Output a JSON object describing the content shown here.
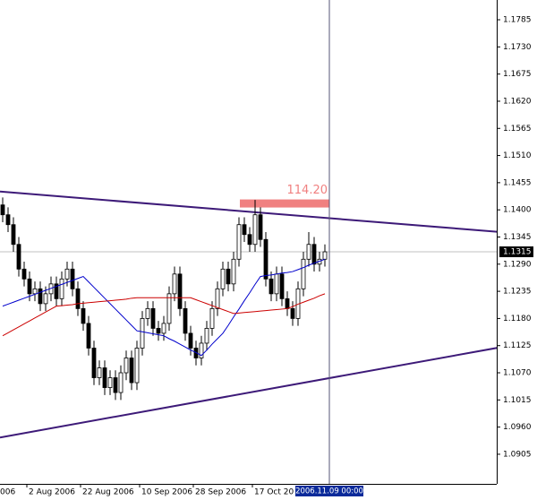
{
  "chart_data": {
    "type": "candlestick",
    "ylim": [
      1.0845,
      1.1825
    ],
    "yticks": [
      1.1785,
      {
        "value": 1.173,
        "label": "1.1730"
      },
      1.1675,
      {
        "value": 1.162,
        "label": "1.1620"
      },
      1.1565,
      {
        "value": 1.151,
        "label": "1.1510"
      },
      1.1455,
      {
        "value": 1.14,
        "label": "1.1400"
      },
      1.1345,
      {
        "value": 1.129,
        "label": "1.1290"
      },
      1.1235,
      {
        "value": 1.118,
        "label": "1.1180"
      },
      1.1125,
      {
        "value": 1.107,
        "label": "1.1070"
      },
      1.1015,
      {
        "value": 1.096,
        "label": "1.0960"
      },
      1.0905
    ],
    "xticks": [
      {
        "value": -4,
        "label": "006"
      },
      {
        "value": 5,
        "label": "2 Aug 2006"
      },
      {
        "value": 15,
        "label": "22 Aug 2006"
      },
      {
        "value": 26,
        "label": "10 Sep 2006"
      },
      {
        "value": 36,
        "label": "28 Sep 2006"
      },
      {
        "value": 47,
        "label": "17 Oct 20"
      }
    ],
    "cursor_label": "2006.11.09 00:00",
    "last_price": 1.1315,
    "annotation": {
      "text": "114.20",
      "price": 1.1412,
      "color": "#f08080"
    },
    "candle_colors": {
      "up": "#ffffff",
      "down": "#000000",
      "outline": "#000000"
    },
    "ohlc": [
      [
        1.141,
        1.1425,
        1.1375,
        1.139
      ],
      [
        1.139,
        1.1405,
        1.1355,
        1.137
      ],
      [
        1.137,
        1.1385,
        1.1315,
        1.133
      ],
      [
        1.133,
        1.1345,
        1.1265,
        1.128
      ],
      [
        1.128,
        1.1295,
        1.1245,
        1.126
      ],
      [
        1.126,
        1.1275,
        1.1215,
        1.123
      ],
      [
        1.123,
        1.1255,
        1.1215,
        1.124
      ],
      [
        1.124,
        1.1255,
        1.1195,
        1.121
      ],
      [
        1.121,
        1.1245,
        1.1195,
        1.123
      ],
      [
        1.123,
        1.1265,
        1.1215,
        1.125
      ],
      [
        1.125,
        1.1265,
        1.1205,
        1.122
      ],
      [
        1.122,
        1.1275,
        1.1205,
        1.126
      ],
      [
        1.126,
        1.1295,
        1.1245,
        1.128
      ],
      [
        1.128,
        1.1295,
        1.1225,
        1.124
      ],
      [
        1.124,
        1.1255,
        1.1185,
        1.12
      ],
      [
        1.12,
        1.1215,
        1.1155,
        1.117
      ],
      [
        1.117,
        1.1185,
        1.1105,
        1.112
      ],
      [
        1.112,
        1.1135,
        1.1045,
        1.106
      ],
      [
        1.106,
        1.1095,
        1.1045,
        1.108
      ],
      [
        1.108,
        1.1095,
        1.1025,
        1.104
      ],
      [
        1.104,
        1.1075,
        1.1025,
        1.106
      ],
      [
        1.106,
        1.1075,
        1.1015,
        1.103
      ],
      [
        1.103,
        1.1085,
        1.1015,
        1.107
      ],
      [
        1.107,
        1.1115,
        1.1055,
        1.11
      ],
      [
        1.11,
        1.1115,
        1.1035,
        1.105
      ],
      [
        1.105,
        1.1135,
        1.1035,
        1.112
      ],
      [
        1.112,
        1.1195,
        1.1105,
        1.118
      ],
      [
        1.118,
        1.1215,
        1.1165,
        1.12
      ],
      [
        1.12,
        1.1215,
        1.1145,
        1.116
      ],
      [
        1.116,
        1.1175,
        1.1135,
        1.115
      ],
      [
        1.115,
        1.1185,
        1.1135,
        1.117
      ],
      [
        1.117,
        1.1245,
        1.1155,
        1.123
      ],
      [
        1.123,
        1.1285,
        1.1215,
        1.127
      ],
      [
        1.127,
        1.1285,
        1.1185,
        1.12
      ],
      [
        1.12,
        1.1215,
        1.1135,
        1.115
      ],
      [
        1.115,
        1.1165,
        1.1105,
        1.112
      ],
      [
        1.112,
        1.1135,
        1.1085,
        1.11
      ],
      [
        1.11,
        1.1145,
        1.1085,
        1.113
      ],
      [
        1.113,
        1.1175,
        1.1115,
        1.116
      ],
      [
        1.116,
        1.1215,
        1.1145,
        1.12
      ],
      [
        1.12,
        1.1255,
        1.1185,
        1.124
      ],
      [
        1.124,
        1.1295,
        1.1225,
        1.128
      ],
      [
        1.128,
        1.1295,
        1.1235,
        1.125
      ],
      [
        1.125,
        1.1315,
        1.1235,
        1.13
      ],
      [
        1.13,
        1.1385,
        1.1285,
        1.137
      ],
      [
        1.137,
        1.1385,
        1.1335,
        1.135
      ],
      [
        1.135,
        1.1365,
        1.1315,
        1.133
      ],
      [
        1.133,
        1.142,
        1.1315,
        1.139
      ],
      [
        1.139,
        1.1405,
        1.1325,
        1.134
      ],
      [
        1.134,
        1.1355,
        1.1245,
        1.126
      ],
      [
        1.126,
        1.1275,
        1.1215,
        1.123
      ],
      [
        1.123,
        1.1285,
        1.1215,
        1.127
      ],
      [
        1.127,
        1.1285,
        1.1205,
        1.122
      ],
      [
        1.122,
        1.1235,
        1.1185,
        1.12
      ],
      [
        1.12,
        1.1215,
        1.1165,
        1.118
      ],
      [
        1.118,
        1.1255,
        1.1165,
        1.124
      ],
      [
        1.124,
        1.1315,
        1.1225,
        1.13
      ],
      [
        1.13,
        1.1355,
        1.1285,
        1.133
      ],
      [
        1.133,
        1.1345,
        1.1275,
        1.129
      ],
      [
        1.129,
        1.1315,
        1.1275,
        1.13
      ],
      [
        1.13,
        1.133,
        1.1285,
        1.1315
      ]
    ],
    "series": [
      {
        "color": "#0000cc",
        "values": [
          1.1205,
          1.1209,
          1.1213,
          1.1217,
          1.1221,
          1.1225,
          1.1229,
          1.1233,
          1.1237,
          1.1241,
          1.1245,
          1.1249,
          1.1253,
          1.1257,
          1.1261,
          1.1265,
          1.1254,
          1.1243,
          1.1232,
          1.1221,
          1.121,
          1.1199,
          1.1188,
          1.1177,
          1.1166,
          1.1155,
          1.1153,
          1.1151,
          1.1149,
          1.1147,
          1.1145,
          1.1139,
          1.1134,
          1.1128,
          1.1122,
          1.1116,
          1.1111,
          1.1105,
          1.1116,
          1.1128,
          1.1139,
          1.115,
          1.1166,
          1.1183,
          1.1199,
          1.1216,
          1.1232,
          1.1249,
          1.1265,
          1.1267,
          1.1268,
          1.127,
          1.1272,
          1.1273,
          1.1275,
          1.1279,
          1.1283,
          1.1288,
          1.1292,
          1.1296,
          1.13
        ]
      },
      {
        "color": "#cc0000",
        "values": [
          1.1145,
          1.1151,
          1.1157,
          1.1163,
          1.1169,
          1.1175,
          1.1181,
          1.1187,
          1.1193,
          1.1199,
          1.1205,
          1.1206,
          1.1207,
          1.1208,
          1.121,
          1.1211,
          1.1212,
          1.1213,
          1.1214,
          1.1215,
          1.1216,
          1.1217,
          1.1218,
          1.1219,
          1.1221,
          1.1222,
          1.1222,
          1.1222,
          1.1222,
          1.1222,
          1.1222,
          1.1222,
          1.1222,
          1.1222,
          1.1222,
          1.1222,
          1.1218,
          1.1214,
          1.121,
          1.1206,
          1.1202,
          1.1198,
          1.1194,
          1.119,
          1.1191,
          1.1192,
          1.1193,
          1.1194,
          1.1195,
          1.1196,
          1.1197,
          1.1198,
          1.1199,
          1.12,
          1.1204,
          1.1209,
          1.1213,
          1.1217,
          1.1221,
          1.1226,
          1.123
        ]
      }
    ],
    "trendlines": [
      {
        "color": "#3d1a78",
        "start": [
          -0.5,
          1.1437
        ],
        "end": [
          99.5,
          1.1349
        ]
      },
      {
        "color": "#3d1a78",
        "start": [
          -0.5,
          1.0939
        ],
        "end": [
          99.5,
          1.1135
        ]
      }
    ]
  }
}
